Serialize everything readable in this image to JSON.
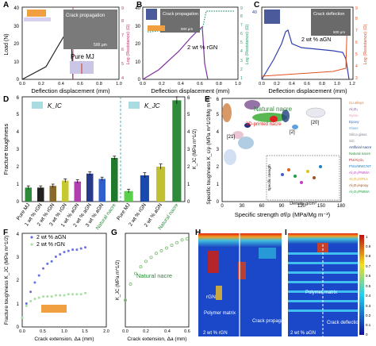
{
  "panel_letters": [
    "A",
    "B",
    "C",
    "D",
    "E",
    "F",
    "G",
    "H",
    "I"
  ],
  "A": {
    "ylabel": "Load (N)",
    "xlabel": "Deflection displacement (mm)",
    "y2label": "Log (Resistance) (Ω)",
    "yticks": [
      "0",
      "10",
      "20",
      "30",
      "40"
    ],
    "xticks": [
      "0.0",
      "0.2",
      "0.4",
      "0.6",
      "0.8",
      "1.0"
    ],
    "y2ticks": [
      "4",
      "5",
      "6",
      "7",
      "8",
      "9"
    ],
    "inset_caption": "Crack propagation",
    "label": "Pure MJ",
    "inset_scale": "500 μm"
  },
  "B": {
    "xlabel": "Deflection displacement (mm)",
    "ylabel": "Load (N)",
    "y2label": "Log (Resistance) (Ω)",
    "yticks": [
      "0",
      "10",
      "20",
      "30",
      "40"
    ],
    "xticks": [
      "0.0",
      "0.2",
      "0.4",
      "0.6",
      "0.8",
      "1.0"
    ],
    "y2ticks": [
      "1",
      "2",
      "3",
      "4",
      "5",
      "6",
      "7",
      "8",
      "9"
    ],
    "inset_caption": "Crack propagation",
    "label": "2 wt % rGN",
    "inset_scale": "500 μm"
  },
  "C": {
    "xlabel": "Deflection displacement (mm)",
    "ylabel": "Load (N)",
    "y2label": "Log (Resistance) (Ω)",
    "yticks": [
      "0",
      "5",
      "10",
      "15",
      "20",
      "25",
      "30",
      "35",
      "40"
    ],
    "xticks": [
      "0.0",
      "0.2",
      "0.4",
      "0.6",
      "0.8",
      "1.0",
      "1.2"
    ],
    "y2ticks": [
      "3",
      "4",
      "5",
      "6",
      "7",
      "8",
      "9"
    ],
    "inset_caption": "Crack deflection",
    "label": "2 wt % aGN",
    "inset_scale": "500 μm"
  },
  "D": {
    "ylabel": "Fracture toughness",
    "y2label": "K_JC (MPa m^1/2)",
    "legend_ic": "K_IC",
    "legend_jc": "K_JC",
    "yticks": [
      "0",
      "1",
      "2",
      "3",
      "4",
      "5",
      "6"
    ],
    "y2ticks": [
      "0",
      "1",
      "2",
      "3",
      "4",
      "5",
      "6"
    ]
  },
  "E": {
    "xlabel": "Specific strength σf/ρ (MPa/Mg m⁻³)",
    "ylabel": "Specific toughness K_c/ρ (MPa m^1/2/Mg m⁻³)",
    "xticks": [
      "0",
      "30",
      "60",
      "90",
      "120",
      "150",
      "180"
    ],
    "yticks": [
      "0",
      "1",
      "2",
      "3",
      "4",
      "5",
      "6"
    ],
    "legend": [
      "Cu alloys",
      "Al₂O₃",
      "Nylon",
      "Epoxy",
      "Glass",
      "Silica glass",
      "SiC",
      "Artificial nacre",
      "Natural nacre",
      "PU/Al₂O₃",
      "PSU/MWCNT",
      "Al₂O₃/PMMA",
      "Al₂O₃/GPLs",
      "Al₂O₃/epoxy",
      "Al₂O₃/PMMA"
    ],
    "labels": [
      "Natural nacre",
      "3D-printed nacre",
      "[2]",
      "[20]",
      "[21]"
    ],
    "inset_xlabel": "Density g/cm³",
    "inset_ylabel": "Specific strength",
    "inset_xticks": [
      "0",
      "1",
      "2",
      "3",
      "4",
      "5"
    ]
  },
  "F": {
    "ylabel": "Fracture toughness K_JC (MPa m^1/2)",
    "xlabel": "Crack extension, Δa (mm)",
    "yticks": [
      "0",
      "1",
      "2",
      "3",
      "4"
    ],
    "xticks": [
      "0.0",
      "0.5",
      "1.0",
      "1.5",
      "2.0"
    ],
    "series": [
      "2 wt % aGN",
      "2 wt % rGN"
    ]
  },
  "G": {
    "ylabel": "K_JC (MPa m^1/2)",
    "xlabel": "Crack extension, Δa (mm)",
    "xticks": [
      "0.0",
      "0.2",
      "0.4",
      "0.6"
    ],
    "label": "Natural nacre"
  },
  "H": {
    "labels": [
      "rGN",
      "Polymer matrix",
      "Crack propagation",
      "2 wt % rGN"
    ]
  },
  "I": {
    "labels": [
      "Polymer matrix",
      "Crack deflection",
      "2 wt % aGN"
    ],
    "colorbar": [
      "1",
      "0.9",
      "0.8",
      "0.7",
      "0.6",
      "0.5",
      "0.4",
      "0.3",
      "0.2",
      "0.1",
      "0"
    ]
  },
  "chart_data": [
    {
      "panel": "D",
      "type": "bar",
      "categories": [
        "Pure MJ",
        "1 wt % rGN",
        "2 wt % rGN",
        "3 wt % rGN",
        "1 wt % aGN",
        "2 wt % aGN",
        "3 wt % aGN",
        "Natural nacre"
      ],
      "series": [
        {
          "name": "K_IC",
          "values": [
            0.8,
            0.8,
            0.9,
            1.2,
            1.15,
            1.6,
            1.3,
            2.5
          ],
          "errors": [
            0.1,
            0.1,
            0.1,
            0.1,
            0.1,
            0.1,
            0.1,
            0.1
          ]
        }
      ],
      "colors": [
        "#2e8b3a",
        "#222222",
        "#8a6a2a",
        "#c8c830",
        "#b040b0",
        "#2a3a8a",
        "#2e5fcc",
        "#1f7a2e"
      ]
    },
    {
      "panel": "D2",
      "type": "bar",
      "categories": [
        "Pure MJ",
        "2 wt % rGN",
        "2 wt % aGN",
        "Natural nacre"
      ],
      "series": [
        {
          "name": "K_JC",
          "values": [
            0.6,
            1.5,
            2.0,
            5.8
          ],
          "errors": [
            0.1,
            0.15,
            0.15,
            0.2
          ]
        }
      ],
      "colors": [
        "#58d04a",
        "#1a4ab0",
        "#c0c030",
        "#2e8b3a"
      ]
    },
    {
      "panel": "F",
      "type": "scatter",
      "series": [
        {
          "name": "2 wt % aGN",
          "x": [
            0.0,
            0.1,
            0.2,
            0.3,
            0.4,
            0.5,
            0.6,
            0.7,
            0.8,
            0.9,
            1.0,
            1.1,
            1.2,
            1.3,
            1.4,
            1.5
          ],
          "y": [
            0.4,
            1.0,
            1.5,
            1.9,
            2.2,
            2.5,
            2.7,
            2.8,
            3.0,
            3.1,
            3.2,
            3.25,
            3.3,
            3.3,
            3.35,
            3.4
          ]
        },
        {
          "name": "2 wt % rGN",
          "x": [
            0.0,
            0.1,
            0.2,
            0.3,
            0.4,
            0.5,
            0.6,
            0.7,
            0.8,
            0.9,
            1.0,
            1.1,
            1.2,
            1.3,
            1.4,
            1.5
          ],
          "y": [
            0.4,
            0.9,
            1.1,
            1.2,
            1.25,
            1.3,
            1.3,
            1.3,
            1.35,
            1.35,
            1.35,
            1.4,
            1.4,
            1.4,
            1.4,
            1.45
          ]
        }
      ],
      "xlim": [
        0,
        2.0
      ],
      "ylim": [
        0,
        4
      ]
    },
    {
      "panel": "G",
      "type": "scatter",
      "series": [
        {
          "name": "Natural nacre",
          "x": [
            0.0,
            0.05,
            0.1,
            0.15,
            0.2,
            0.25,
            0.3,
            0.35,
            0.4,
            0.45,
            0.5,
            0.55,
            0.6
          ],
          "y": [
            2.0,
            3.2,
            4.0,
            4.5,
            4.9,
            5.2,
            5.5,
            5.7,
            5.9,
            6.1,
            6.3,
            6.5,
            6.6
          ]
        }
      ],
      "xlim": [
        0,
        0.6
      ],
      "ylim": [
        0,
        7
      ]
    }
  ]
}
